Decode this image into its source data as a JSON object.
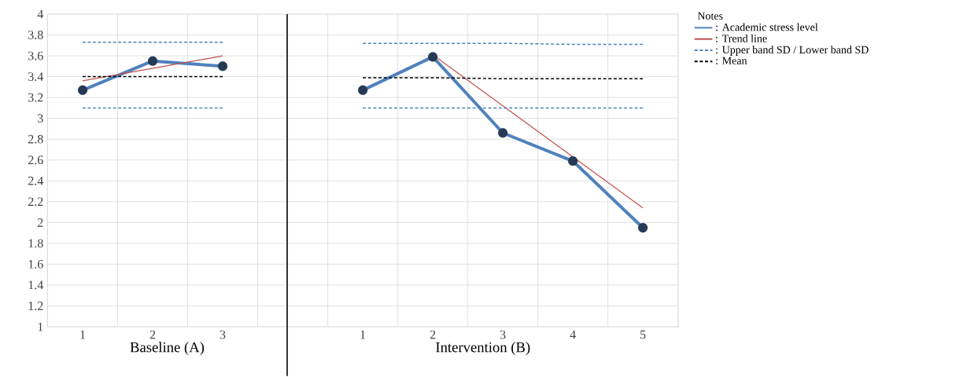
{
  "chart_data": [
    {
      "type": "line",
      "xlabel": "Baseline (A)",
      "categories": [
        "1",
        "2",
        "3"
      ],
      "ylim": [
        1,
        4
      ],
      "yticks": [
        1,
        1.2,
        1.4,
        1.6,
        1.8,
        2,
        2.2,
        2.4,
        2.6,
        2.8,
        3,
        3.2,
        3.4,
        3.6,
        3.8,
        4
      ],
      "grid": true,
      "series": [
        {
          "color": "#4f81bd",
          "marker": "circle",
          "line_style": "solid",
          "values": [
            3.27,
            3.55,
            3.5
          ]
        },
        {
          "color": "#c0504d",
          "line_style": "solid",
          "values": [
            3.36,
            3.48,
            3.6
          ]
        },
        {
          "color": "#4f81bd",
          "line_style": "dashed",
          "values": [
            3.73,
            3.73,
            3.73
          ]
        },
        {
          "color": "#4f81bd",
          "line_style": "dashed",
          "values": [
            3.1,
            3.1,
            3.1
          ]
        },
        {
          "color": "#000000",
          "line_style": "dashed",
          "values": [
            3.4,
            3.4,
            3.4
          ]
        }
      ]
    },
    {
      "type": "line",
      "xlabel": "Intervention (B)",
      "categories": [
        "1",
        "2",
        "3",
        "4",
        "5"
      ],
      "ylim": [
        1,
        4
      ],
      "yticks": [
        1,
        1.2,
        1.4,
        1.6,
        1.8,
        2,
        2.2,
        2.4,
        2.6,
        2.8,
        3,
        3.2,
        3.4,
        3.6,
        3.8,
        4
      ],
      "tick_labels": "x",
      "grid": true,
      "legend": "right",
      "legend_title": "Notes",
      "series": [
        {
          "name": ": Academic stress level",
          "color": "#4f81bd",
          "marker": "circle",
          "line_style": "solid",
          "values": [
            3.27,
            3.59,
            2.86,
            2.59,
            1.95
          ]
        },
        {
          "name": ": Trend line",
          "color": "#c0504d",
          "line_style": "solid",
          "values": [
            null,
            3.61,
            3.12,
            2.63,
            2.14
          ]
        },
        {
          "name": ": Upper band SD / Lower band SD",
          "color": "#4f81bd",
          "line_style": "dashed",
          "values": [
            3.72,
            3.72,
            3.72,
            3.71,
            3.71
          ]
        },
        {
          "color": "#4f81bd",
          "line_style": "dashed",
          "values": [
            3.1,
            3.1,
            3.1,
            3.1,
            3.1
          ]
        },
        {
          "name": ": Mean",
          "color": "#000000",
          "line_style": "dashed",
          "values": [
            3.39,
            3.39,
            3.38,
            3.38,
            3.38
          ]
        }
      ]
    }
  ]
}
